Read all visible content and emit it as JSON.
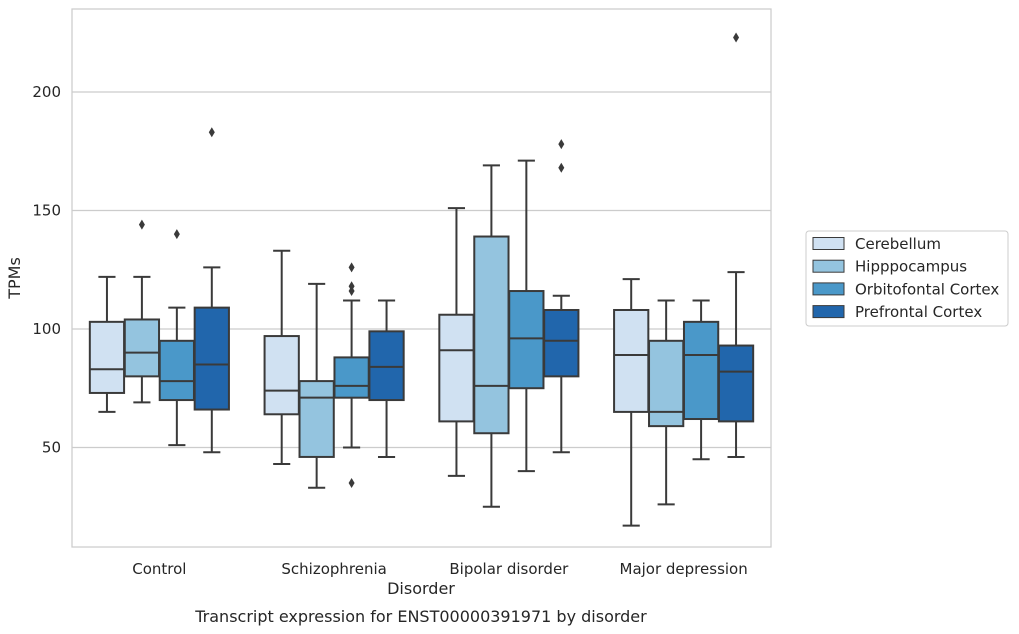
{
  "chart_data": {
    "type": "box",
    "caption": "Transcript expression for ENST00000391971 by disorder",
    "xlabel": "Disorder",
    "ylabel": "TPMs",
    "ylim": [
      8,
      235
    ],
    "yticks": [
      50,
      100,
      150,
      200
    ],
    "grid": "horizontal",
    "legend_position": "right",
    "categories": [
      "Control",
      "Schizophrenia",
      "Bipolar disorder",
      "Major depression"
    ],
    "series": [
      {
        "name": "Cerebellum",
        "color": "#d0e1f2",
        "boxes": [
          {
            "whisker_low": 65,
            "q1": 73,
            "median": 83,
            "q3": 103,
            "whisker_high": 122,
            "outliers": []
          },
          {
            "whisker_low": 43,
            "q1": 64,
            "median": 74,
            "q3": 97,
            "whisker_high": 133,
            "outliers": []
          },
          {
            "whisker_low": 38,
            "q1": 61,
            "median": 91,
            "q3": 106,
            "whisker_high": 151,
            "outliers": []
          },
          {
            "whisker_low": 17,
            "q1": 65,
            "median": 89,
            "q3": 108,
            "whisker_high": 121,
            "outliers": []
          }
        ]
      },
      {
        "name": "Hipppocampus",
        "color": "#94c4df",
        "boxes": [
          {
            "whisker_low": 69,
            "q1": 80,
            "median": 90,
            "q3": 104,
            "whisker_high": 122,
            "outliers": [
              144
            ]
          },
          {
            "whisker_low": 33,
            "q1": 46,
            "median": 71,
            "q3": 78,
            "whisker_high": 119,
            "outliers": []
          },
          {
            "whisker_low": 25,
            "q1": 56,
            "median": 76,
            "q3": 139,
            "whisker_high": 169,
            "outliers": []
          },
          {
            "whisker_low": 26,
            "q1": 59,
            "median": 65,
            "q3": 95,
            "whisker_high": 112,
            "outliers": []
          }
        ]
      },
      {
        "name": "Orbitofontal Cortex",
        "color": "#4a98c9",
        "boxes": [
          {
            "whisker_low": 51,
            "q1": 70,
            "median": 78,
            "q3": 95,
            "whisker_high": 109,
            "outliers": [
              140
            ]
          },
          {
            "whisker_low": 50,
            "q1": 71,
            "median": 76,
            "q3": 88,
            "whisker_high": 112,
            "outliers": [
              35,
              116,
              118,
              126
            ]
          },
          {
            "whisker_low": 40,
            "q1": 75,
            "median": 96,
            "q3": 116,
            "whisker_high": 171,
            "outliers": []
          },
          {
            "whisker_low": 45,
            "q1": 62,
            "median": 89,
            "q3": 103,
            "whisker_high": 112,
            "outliers": []
          }
        ]
      },
      {
        "name": "Prefrontal Cortex",
        "color": "#2166ac",
        "boxes": [
          {
            "whisker_low": 48,
            "q1": 66,
            "median": 85,
            "q3": 109,
            "whisker_high": 126,
            "outliers": [
              183
            ]
          },
          {
            "whisker_low": 46,
            "q1": 70,
            "median": 84,
            "q3": 99,
            "whisker_high": 112,
            "outliers": []
          },
          {
            "whisker_low": 48,
            "q1": 80,
            "median": 95,
            "q3": 108,
            "whisker_high": 114,
            "outliers": [
              168,
              178
            ]
          },
          {
            "whisker_low": 46,
            "q1": 61,
            "median": 82,
            "q3": 93,
            "whisker_high": 124,
            "outliers": [
              223
            ]
          }
        ]
      }
    ]
  }
}
